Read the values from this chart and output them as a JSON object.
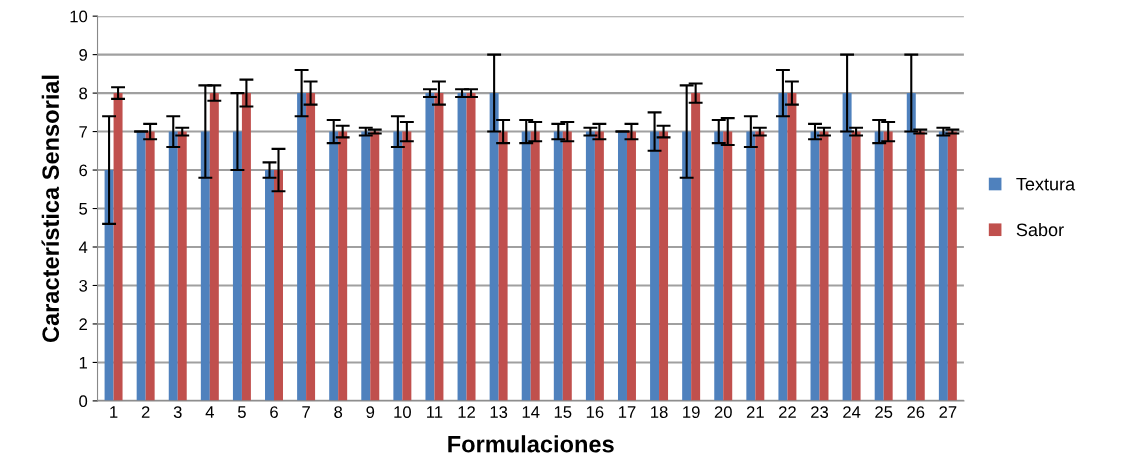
{
  "chart_data": {
    "type": "bar",
    "xlabel": "Formulaciones",
    "ylabel": "Característica Sensorial",
    "categories": [
      "1",
      "2",
      "3",
      "4",
      "5",
      "6",
      "7",
      "8",
      "9",
      "10",
      "11",
      "12",
      "13",
      "14",
      "15",
      "16",
      "17",
      "18",
      "19",
      "20",
      "21",
      "22",
      "23",
      "24",
      "25",
      "26",
      "27"
    ],
    "series": [
      {
        "name": "Textura",
        "color": "#4f81bd",
        "values": [
          6,
          7,
          7,
          7,
          7,
          6,
          8,
          7,
          7,
          7,
          8,
          8,
          8,
          7,
          7,
          7,
          7,
          7,
          7,
          7,
          7,
          8,
          7,
          8,
          7,
          8,
          7
        ],
        "errors": [
          1.4,
          0,
          0.4,
          1.2,
          1.0,
          0.2,
          0.6,
          0.3,
          0.1,
          0.4,
          0.1,
          0.1,
          1.0,
          0.3,
          0.2,
          0.1,
          0,
          0.5,
          1.2,
          0.3,
          0.4,
          0.6,
          0.2,
          1.0,
          0.3,
          1.0,
          0.1
        ]
      },
      {
        "name": "Sabor",
        "color": "#c0504d",
        "values": [
          8,
          7,
          7,
          8,
          8,
          6,
          8,
          7,
          7,
          7,
          8,
          8,
          7,
          7,
          7,
          7,
          7,
          7,
          8,
          7,
          7,
          8,
          7,
          7,
          7,
          7,
          7
        ],
        "errors": [
          0.15,
          0.2,
          0.1,
          0.2,
          0.35,
          0.55,
          0.3,
          0.15,
          0.05,
          0.25,
          0.3,
          0.1,
          0.3,
          0.25,
          0.25,
          0.2,
          0.2,
          0.15,
          0.25,
          0.35,
          0.1,
          0.3,
          0.1,
          0.1,
          0.25,
          0.05,
          0.05
        ]
      }
    ],
    "ylim": [
      0,
      10
    ],
    "yticks": [
      0,
      1,
      2,
      3,
      4,
      5,
      6,
      7,
      8,
      9,
      10
    ],
    "grid": "y",
    "legend": "right"
  }
}
